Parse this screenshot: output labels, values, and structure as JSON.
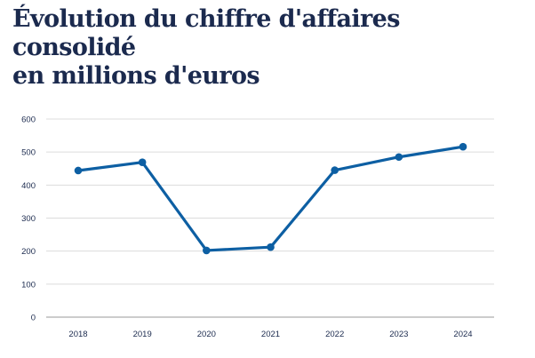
{
  "chart_data": {
    "type": "line",
    "title_lines": [
      "Évolution du chiffre d'affaires consolidé",
      "en millions d'euros"
    ],
    "categories": [
      "2018",
      "2019",
      "2020",
      "2021",
      "2022",
      "2023",
      "2024"
    ],
    "series": [
      {
        "values": [
          444,
          469,
          202,
          212,
          445,
          485,
          516
        ],
        "color": "#0d5fa3"
      }
    ],
    "ylim": [
      0,
      600
    ],
    "yticks": [
      0,
      100,
      200,
      300,
      400,
      500,
      600
    ],
    "xlabel": "",
    "ylabel": "",
    "grid": "horizontal"
  }
}
